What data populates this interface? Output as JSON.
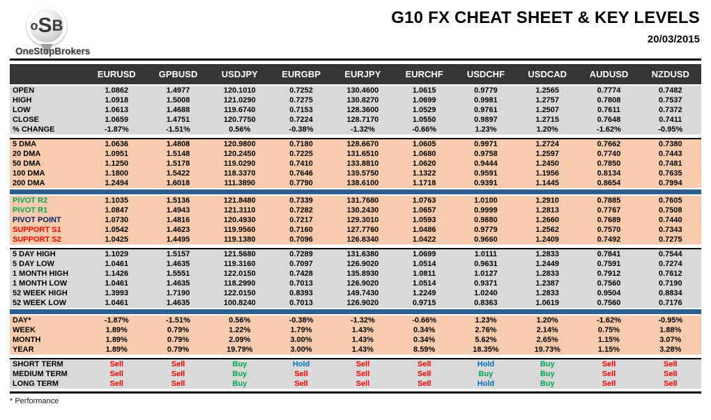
{
  "logo": {
    "mark_o": "o",
    "mark_s": "S",
    "mark_b": "B",
    "brand": "OneStopBrokers"
  },
  "header": {
    "title": "G10 FX CHEAT SHEET & KEY LEVELS",
    "date": "20/03/2015"
  },
  "footnote": "* Performance",
  "colors": {
    "header_bg": "#363636",
    "gray_band": "#D9D9D9",
    "peach_band": "#F8CBAD",
    "blue_bar": "#2F5E91",
    "sell": "#FF0000",
    "buy": "#00A651",
    "hold": "#0070C0",
    "pivot_resistance": "#00A651",
    "pivot_point": "#002060",
    "support": "#FF0000"
  },
  "table": {
    "columns": [
      "EURUSD",
      "GPBUSD",
      "USDJPY",
      "EURGBP",
      "EURJPY",
      "EURCHF",
      "USDCHF",
      "USDCAD",
      "AUDUSD",
      "NZDUSD"
    ],
    "sections": [
      {
        "name": "ohlc",
        "style": "gray",
        "divider_before": null,
        "signal": false,
        "rows": [
          {
            "label": "OPEN",
            "values": [
              "1.0862",
              "1.4977",
              "120.1010",
              "0.7252",
              "130.4600",
              "1.0615",
              "0.9779",
              "1.2565",
              "0.7774",
              "0.7482"
            ]
          },
          {
            "label": "HIGH",
            "values": [
              "1.0918",
              "1.5008",
              "121.0290",
              "0.7275",
              "130.8270",
              "1.0699",
              "0.9981",
              "1.2757",
              "0.7808",
              "0.7537"
            ]
          },
          {
            "label": "LOW",
            "values": [
              "1.0613",
              "1.4688",
              "119.6740",
              "0.7153",
              "128.3600",
              "1.0529",
              "0.9761",
              "1.2507",
              "0.7611",
              "0.7372"
            ]
          },
          {
            "label": "CLOSE",
            "values": [
              "1.0659",
              "1.4751",
              "120.7750",
              "0.7224",
              "128.7170",
              "1.0550",
              "0.9897",
              "1.2715",
              "0.7648",
              "0.7411"
            ]
          },
          {
            "label": "% CHANGE",
            "values": [
              "-1.87%",
              "-1.51%",
              "0.56%",
              "-0.38%",
              "-1.32%",
              "-0.66%",
              "1.23%",
              "1.20%",
              "-1.62%",
              "-0.95%"
            ]
          }
        ]
      },
      {
        "name": "moving-averages",
        "style": "peach",
        "divider_before": "gap",
        "signal": false,
        "rows": [
          {
            "label": "5 DMA",
            "values": [
              "1.0636",
              "1.4808",
              "120.9800",
              "0.7180",
              "128.6670",
              "1.0605",
              "0.9971",
              "1.2724",
              "0.7662",
              "0.7380"
            ]
          },
          {
            "label": "20 DMA",
            "values": [
              "1.0951",
              "1.5148",
              "120.2450",
              "0.7225",
              "131.6510",
              "1.0680",
              "0.9758",
              "1.2597",
              "0.7740",
              "0.7443"
            ]
          },
          {
            "label": "50 DMA",
            "values": [
              "1.1250",
              "1.5178",
              "119.0290",
              "0.7410",
              "133.8810",
              "1.0620",
              "0.9444",
              "1.2450",
              "0.7850",
              "0.7481"
            ]
          },
          {
            "label": "100 DMA",
            "values": [
              "1.1800",
              "1.5422",
              "118.3370",
              "0.7646",
              "139.5750",
              "1.1322",
              "0.9591",
              "1.1956",
              "0.8134",
              "0.7635"
            ]
          },
          {
            "label": "200 DMA",
            "values": [
              "1.2494",
              "1.6018",
              "111.3890",
              "0.7790",
              "138.6100",
              "1.1718",
              "0.9391",
              "1.1445",
              "0.8654",
              "0.7994"
            ]
          }
        ]
      },
      {
        "name": "pivots",
        "style": "peach",
        "divider_before": "blue",
        "signal": false,
        "rows": [
          {
            "label": "PIVOT R2",
            "label_color": "#00A651",
            "values": [
              "1.1035",
              "1.5136",
              "121.8480",
              "0.7339",
              "131.7680",
              "1.0763",
              "1.0100",
              "1.2910",
              "0.7885",
              "0.7605"
            ]
          },
          {
            "label": "PIVOT R1",
            "label_color": "#00A651",
            "values": [
              "1.0847",
              "1.4943",
              "121.3110",
              "0.7282",
              "130.2430",
              "1.0657",
              "0.9999",
              "1.2813",
              "0.7767",
              "0.7508"
            ]
          },
          {
            "label": "PIVOT POINT",
            "label_color": "#002060",
            "values": [
              "1.0730",
              "1.4816",
              "120.4930",
              "0.7217",
              "129.3010",
              "1.0593",
              "0.9880",
              "1.2660",
              "0.7689",
              "0.7440"
            ]
          },
          {
            "label": "SUPPORT S1",
            "label_color": "#FF0000",
            "values": [
              "1.0542",
              "1.4623",
              "119.9560",
              "0.7160",
              "127.7760",
              "1.0486",
              "0.9779",
              "1.2562",
              "0.7570",
              "0.7343"
            ]
          },
          {
            "label": "SUPPORT S2",
            "label_color": "#FF0000",
            "values": [
              "1.0425",
              "1.4495",
              "119.1380",
              "0.7096",
              "126.8340",
              "1.0422",
              "0.9660",
              "1.2409",
              "0.7492",
              "0.7275"
            ]
          }
        ]
      },
      {
        "name": "ranges",
        "style": "gray",
        "divider_before": "gap",
        "signal": false,
        "rows": [
          {
            "label": "5 DAY HIGH",
            "values": [
              "1.1029",
              "1.5157",
              "121.5680",
              "0.7289",
              "131.6380",
              "1.0699",
              "1.0111",
              "1.2833",
              "0.7841",
              "0.7544"
            ]
          },
          {
            "label": "5 DAY LOW",
            "values": [
              "1.0461",
              "1.4635",
              "119.3160",
              "0.7097",
              "126.9020",
              "1.0514",
              "0.9631",
              "1.2449",
              "0.7591",
              "0.7274"
            ]
          },
          {
            "label": "1 MONTH HIGH",
            "values": [
              "1.1426",
              "1.5551",
              "122.0150",
              "0.7428",
              "135.8930",
              "1.0811",
              "1.0127",
              "1.2833",
              "0.7912",
              "0.7612"
            ]
          },
          {
            "label": "1 MONTH LOW",
            "values": [
              "1.0461",
              "1.4635",
              "118.2990",
              "0.7013",
              "126.9020",
              "1.0514",
              "0.9371",
              "1.2387",
              "0.7560",
              "0.7190"
            ]
          },
          {
            "label": "52 WEEK HIGH",
            "values": [
              "1.3993",
              "1.7190",
              "122.0150",
              "0.8393",
              "149.7430",
              "1.2249",
              "1.0240",
              "1.2833",
              "0.9504",
              "0.8834"
            ]
          },
          {
            "label": "52 WEEK LOW",
            "values": [
              "1.0461",
              "1.4635",
              "100.8240",
              "0.7013",
              "126.9020",
              "0.9715",
              "0.8363",
              "1.0619",
              "0.7560",
              "0.7176"
            ]
          }
        ]
      },
      {
        "name": "performance",
        "style": "peach",
        "divider_before": "blue",
        "signal": false,
        "rows": [
          {
            "label": "DAY*",
            "values": [
              "-1.87%",
              "-1.51%",
              "0.56%",
              "-0.38%",
              "-1.32%",
              "-0.66%",
              "1.23%",
              "1.20%",
              "-1.62%",
              "-0.95%"
            ]
          },
          {
            "label": "WEEK",
            "values": [
              "1.89%",
              "0.79%",
              "1.22%",
              "1.79%",
              "1.43%",
              "0.34%",
              "2.76%",
              "2.14%",
              "0.75%",
              "1.88%"
            ]
          },
          {
            "label": "MONTH",
            "values": [
              "1.89%",
              "0.79%",
              "2.09%",
              "3.00%",
              "1.43%",
              "0.34%",
              "5.62%",
              "2.65%",
              "1.15%",
              "3.07%"
            ]
          },
          {
            "label": "YEAR",
            "values": [
              "1.89%",
              "0.79%",
              "19.79%",
              "3.00%",
              "1.43%",
              "8.59%",
              "18.35%",
              "19.73%",
              "1.15%",
              "3.28%"
            ]
          }
        ]
      },
      {
        "name": "signals",
        "style": "gray",
        "divider_before": "gap",
        "signal": true,
        "rows": [
          {
            "label": "SHORT TERM",
            "values": [
              "Sell",
              "Sell",
              "Buy",
              "Hold",
              "Sell",
              "Sell",
              "Hold",
              "Buy",
              "Sell",
              "Sell"
            ]
          },
          {
            "label": "MEDIUM TERM",
            "values": [
              "Sell",
              "Sell",
              "Buy",
              "Sell",
              "Sell",
              "Sell",
              "Buy",
              "Buy",
              "Sell",
              "Sell"
            ]
          },
          {
            "label": "LONG TERM",
            "values": [
              "Sell",
              "Sell",
              "Buy",
              "Sell",
              "Sell",
              "Sell",
              "Hold",
              "Buy",
              "Sell",
              "Sell"
            ]
          }
        ]
      }
    ]
  }
}
